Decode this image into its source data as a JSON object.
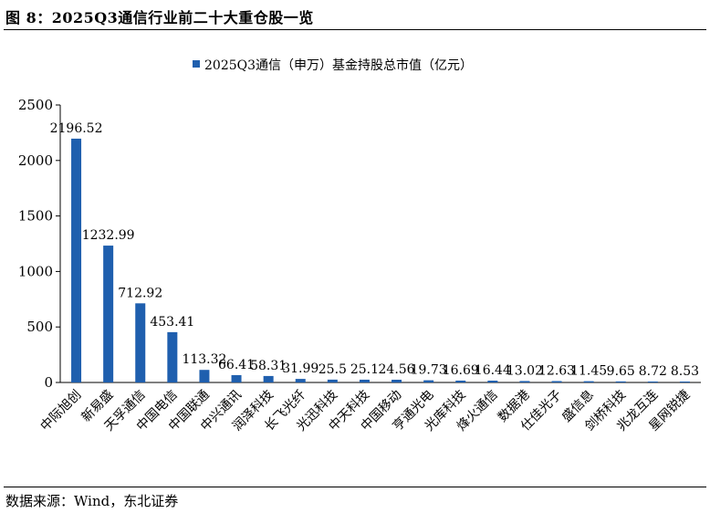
{
  "figure_title": "图 8：2025Q3通信行业前二十大重仓股一览",
  "source": "数据来源：Wind，东北证券",
  "colors": {
    "bar": "#1f5fae",
    "axis": "#000000"
  },
  "chart_data": {
    "type": "bar",
    "title": "",
    "xlabel": "",
    "ylabel": "",
    "legend": {
      "position": "top-center",
      "entries": [
        "2025Q3通信（申万）基金持股总市值（亿元）"
      ]
    },
    "ylim": [
      0,
      2500
    ],
    "yticks": [
      0,
      500,
      1000,
      1500,
      2000,
      2500
    ],
    "grid": false,
    "categories": [
      "中际旭创",
      "新易盛",
      "天孚通信",
      "中国电信",
      "中国联通",
      "中兴通讯",
      "润泽科技",
      "长飞光纤",
      "光迅科技",
      "中天科技",
      "中国移动",
      "亨通光电",
      "光库科技",
      "烽火通信",
      "数据港",
      "仕佳光子",
      "盛信息",
      "剑桥科技",
      "兆龙互连",
      "星网锐捷"
    ],
    "series": [
      {
        "name": "2025Q3通信（申万）基金持股总市值（亿元）",
        "values": [
          2196.52,
          1232.99,
          712.92,
          453.41,
          113.32,
          66.41,
          58.31,
          31.99,
          25.5,
          25.1,
          24.56,
          19.73,
          16.69,
          16.44,
          13.02,
          12.63,
          11.45,
          9.65,
          8.72,
          8.53
        ],
        "labels": [
          "2196.52",
          "1232.99",
          "712.92",
          "453.41",
          "113.32",
          "66.41",
          "58.31",
          "31.99",
          "25.5",
          "25.1",
          "24.56",
          "19.73",
          "16.69",
          "16.44",
          "13.02",
          "12.63",
          "11.45",
          "9.65",
          "8.72",
          "8.53"
        ]
      }
    ]
  }
}
